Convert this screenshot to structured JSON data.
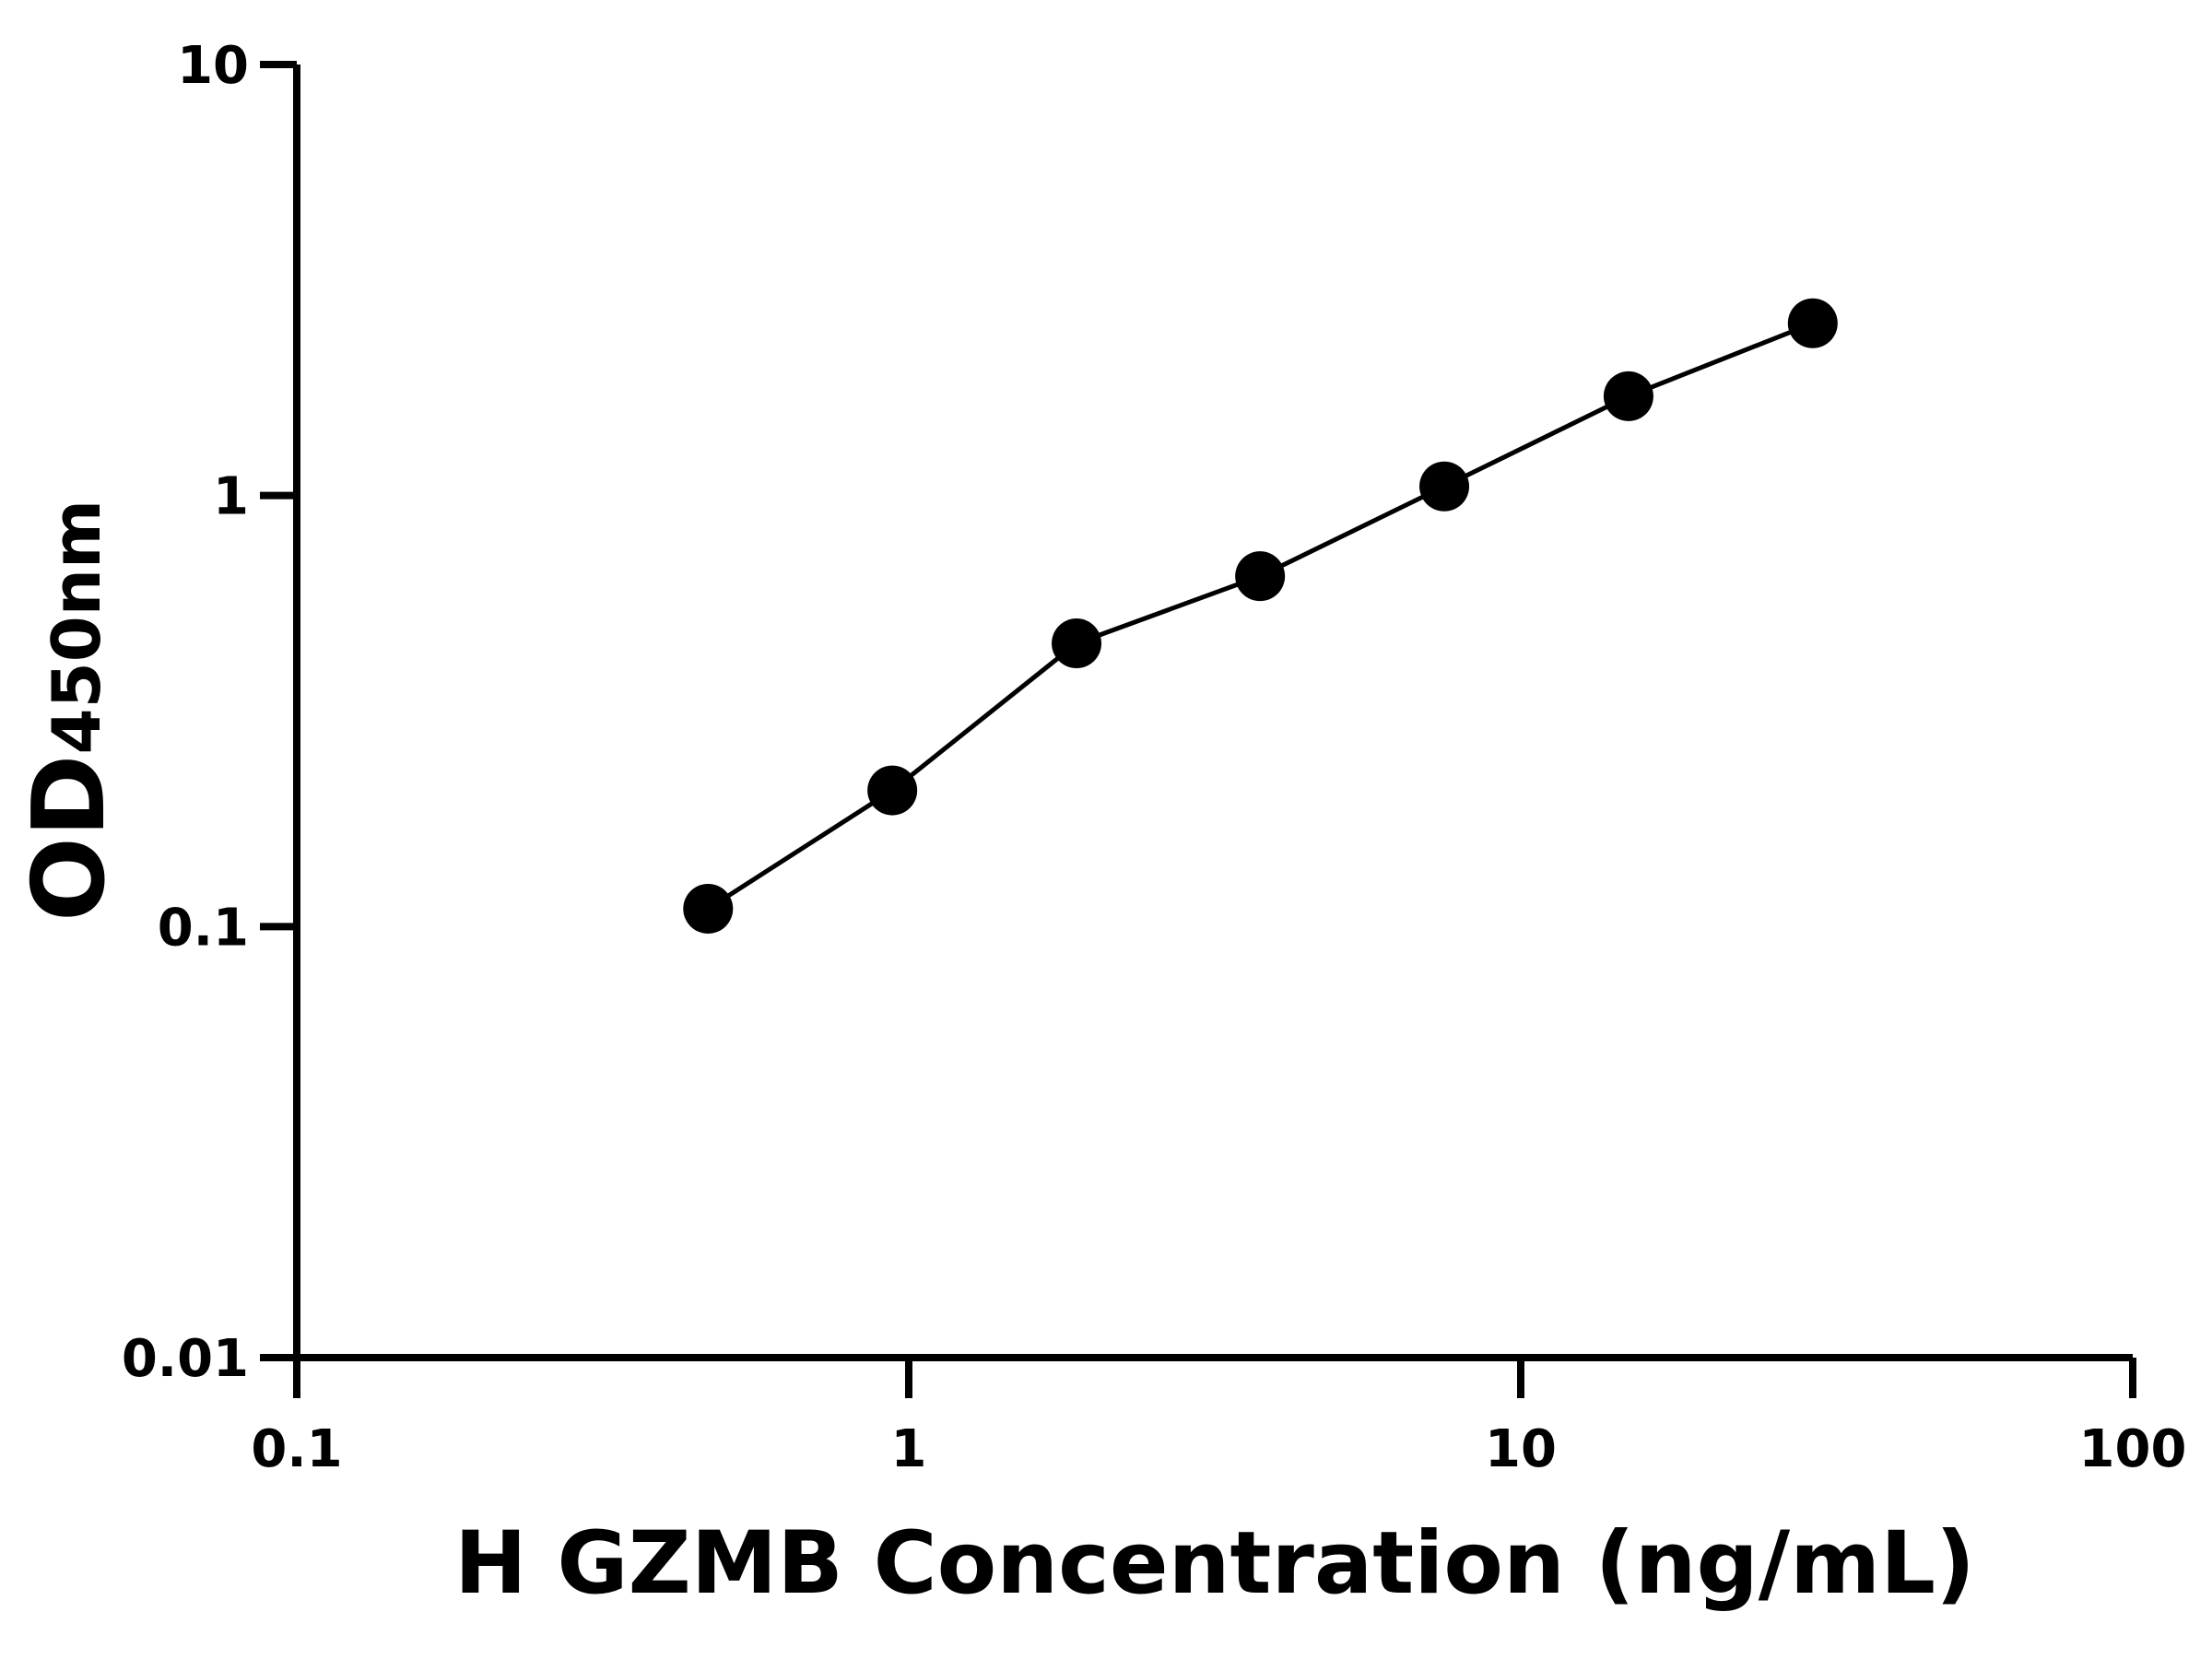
{
  "chart_data": {
    "type": "scatter",
    "x_label": "H GZMB Concentration (ng/mL)",
    "y_label": "OD",
    "y_label_subscript": "450nm",
    "x": [
      0.47,
      0.94,
      1.88,
      3.75,
      7.5,
      15,
      30
    ],
    "series": [
      {
        "color": "#000000",
        "values": [
          0.11,
          0.207,
          0.454,
          0.65,
          1.05,
          1.7,
          2.51
        ]
      }
    ],
    "xscale": "log",
    "yscale": "log",
    "xlim": [
      0.1,
      100
    ],
    "ylim": [
      0.01,
      10
    ],
    "xticks": [
      0.1,
      1,
      10,
      100
    ],
    "yticks": [
      0.01,
      0.1,
      1,
      10
    ],
    "grid": false
  }
}
